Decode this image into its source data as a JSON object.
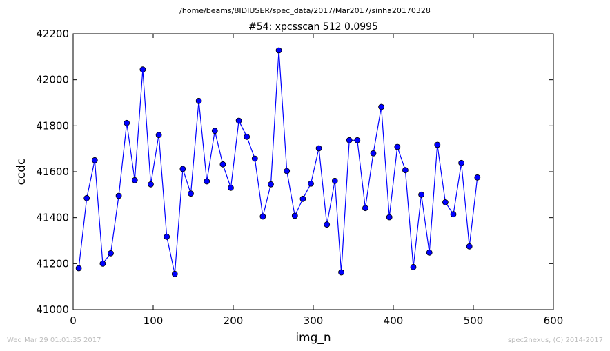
{
  "page": {
    "suptitle": "/home/beams/8IDIUSER/spec_data/2017/Mar2017/sinha20170328",
    "footer_left": "Wed Mar 29 01:01:35 2017",
    "footer_right": "spec2nexus, (C) 2014-2017"
  },
  "chart_data": {
    "type": "line",
    "title": "#54: xpcsscan 512 0.0995",
    "xlabel": "img_n",
    "ylabel": "ccdc",
    "xlim": [
      0,
      600
    ],
    "ylim": [
      41000,
      42200
    ],
    "xticks": [
      0,
      100,
      200,
      300,
      400,
      500,
      600
    ],
    "yticks": [
      41000,
      41200,
      41400,
      41600,
      41800,
      42000,
      42200
    ],
    "grid": false,
    "legend": "none",
    "colors": {
      "line": "#0000ff",
      "marker_fill": "#0000ff",
      "marker_edge": "#000000"
    },
    "series": [
      {
        "x": [
          7,
          17,
          27,
          37,
          47,
          57,
          67,
          77,
          87,
          97,
          107,
          117,
          127,
          137,
          147,
          157,
          167,
          177,
          187,
          197,
          207,
          217,
          227,
          237,
          247,
          257,
          267,
          277,
          287,
          297,
          307,
          317,
          327,
          335,
          345,
          355,
          365,
          375,
          385,
          395,
          405,
          415,
          425,
          435,
          445,
          455,
          465,
          475,
          485,
          495,
          505
        ],
        "y": [
          41180,
          41485,
          41650,
          41200,
          41245,
          41495,
          41812,
          41563,
          42045,
          41545,
          41760,
          41317,
          41155,
          41612,
          41505,
          41908,
          41558,
          41778,
          41632,
          41530,
          41822,
          41752,
          41657,
          41405,
          41545,
          42128,
          41603,
          41408,
          41482,
          41548,
          41702,
          41370,
          41560,
          41162,
          41737,
          41737,
          41442,
          41680,
          41882,
          41402,
          41708,
          41607,
          41185,
          41500,
          41248,
          41717,
          41467,
          41415,
          41638,
          41275,
          41575
        ]
      }
    ]
  }
}
